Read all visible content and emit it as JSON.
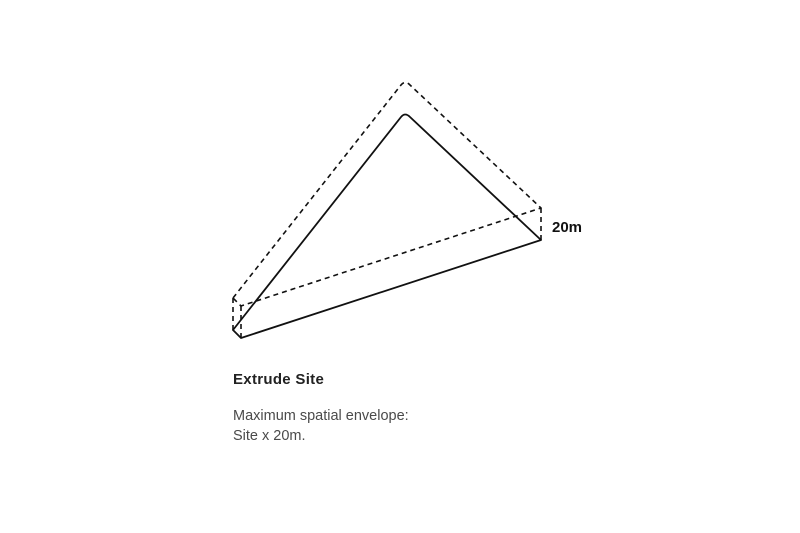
{
  "diagram": {
    "height_label": "20m",
    "colors": {
      "stroke": "#111111",
      "caption_title": "#222222",
      "caption_text": "#4a4a4a"
    }
  },
  "caption": {
    "title": "Extrude Site",
    "lines": [
      "Maximum spatial envelope:",
      "Site x 20m."
    ]
  }
}
